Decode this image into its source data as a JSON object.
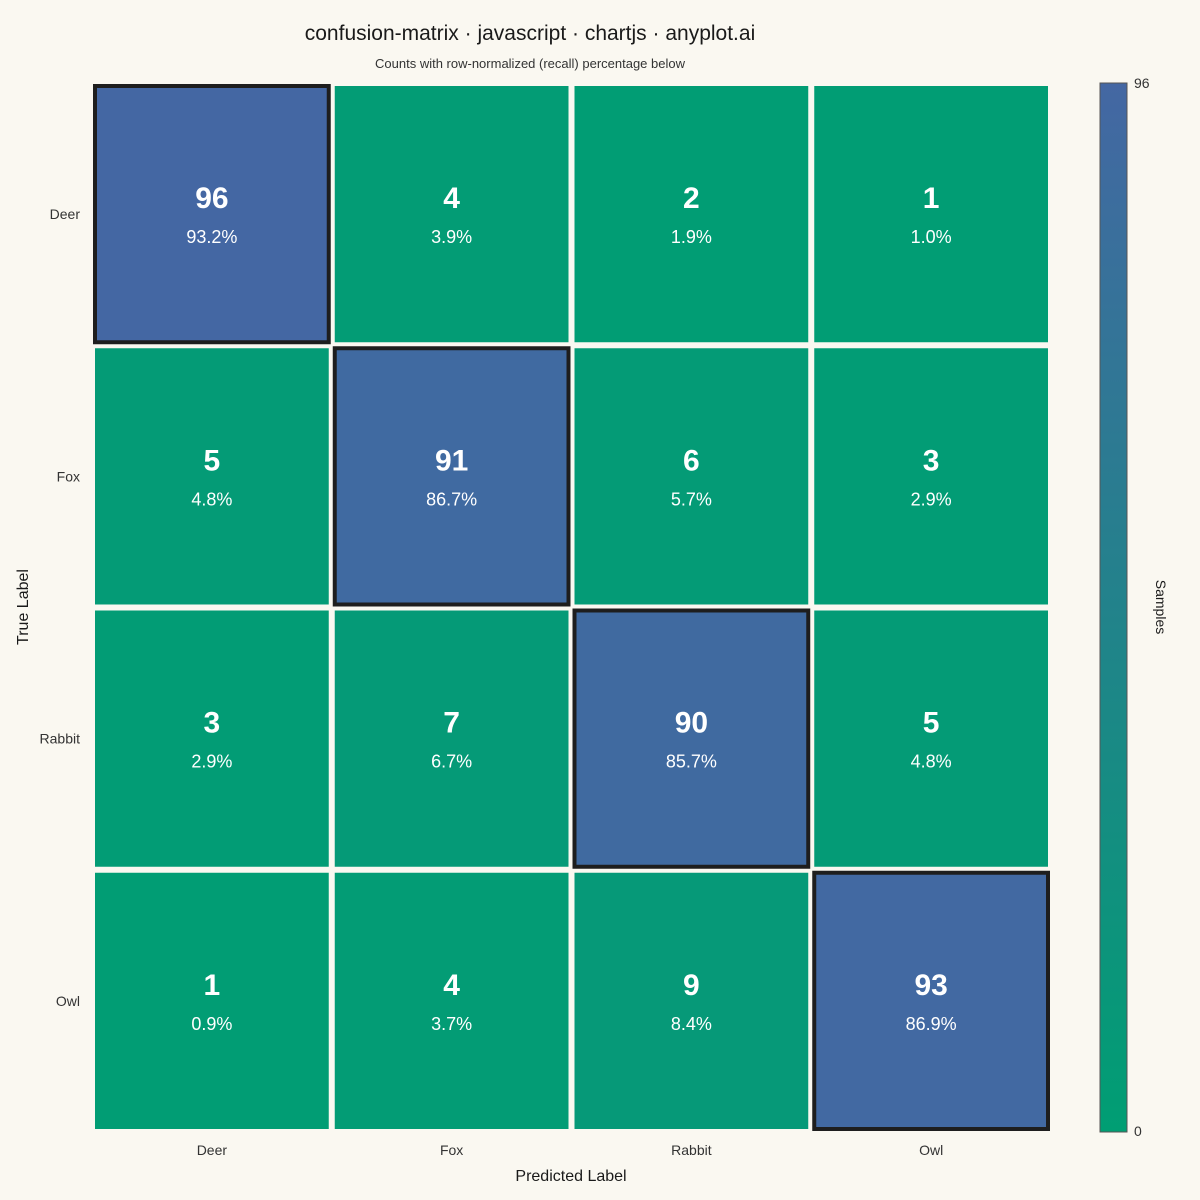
{
  "chart_data": {
    "type": "heatmap",
    "title": "confusion-matrix · javascript · chartjs · anyplot.ai",
    "subtitle": "Counts with row-normalized (recall) percentage below",
    "xlabel": "Predicted Label",
    "ylabel": "True Label",
    "x_categories": [
      "Deer",
      "Fox",
      "Rabbit",
      "Owl"
    ],
    "y_categories": [
      "Deer",
      "Fox",
      "Rabbit",
      "Owl"
    ],
    "values": [
      [
        96,
        4,
        2,
        1
      ],
      [
        5,
        91,
        6,
        3
      ],
      [
        3,
        7,
        90,
        5
      ],
      [
        1,
        4,
        9,
        93
      ]
    ],
    "percentages": [
      [
        "93.2%",
        "3.9%",
        "1.9%",
        "1.0%"
      ],
      [
        "4.8%",
        "86.7%",
        "5.7%",
        "2.9%"
      ],
      [
        "2.9%",
        "6.7%",
        "85.7%",
        "4.8%"
      ],
      [
        "0.9%",
        "3.7%",
        "8.4%",
        "86.9%"
      ]
    ],
    "colorbar": {
      "label": "Samples",
      "min": 0,
      "max": 96,
      "min_label": "0",
      "max_label": "96",
      "color_low": "#009E73",
      "color_high": "#4467A3"
    },
    "diagonal_highlight": true,
    "highlight_color": "#1e1e1e"
  }
}
